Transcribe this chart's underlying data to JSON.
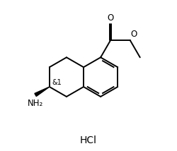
{
  "bg_color": "#ffffff",
  "line_color": "#000000",
  "lw": 1.4,
  "font_size_label": 8.5,
  "font_size_hcl": 10,
  "font_size_stereo": 7,
  "hcl_text": "HCl",
  "stereo_label": "&1",
  "nh2_label": "NH₂",
  "o_carbonyl": "O",
  "o_ester": "O"
}
